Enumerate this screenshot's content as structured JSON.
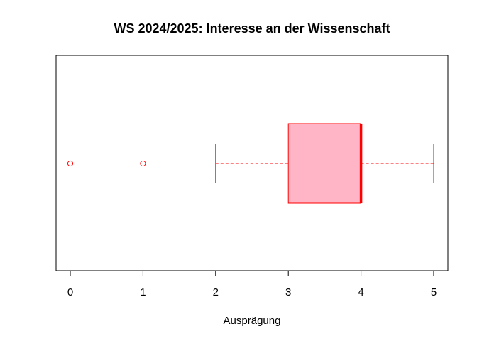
{
  "chart_data": {
    "type": "boxplot",
    "orientation": "horizontal",
    "title": "WS 2024/2025: Interesse an der Wissenschaft",
    "xlabel": "Ausprägung",
    "ylabel": "",
    "xlim": [
      0,
      5
    ],
    "xticks": [
      0,
      1,
      2,
      3,
      4,
      5
    ],
    "box": {
      "whisker_low": 2,
      "q1": 3,
      "median": 4,
      "q3": 4,
      "whisker_high": 5,
      "outliers": [
        0,
        1
      ]
    },
    "colors": {
      "box_fill": "#ffb5c5",
      "stroke": "#ff0000"
    },
    "grid": false
  }
}
